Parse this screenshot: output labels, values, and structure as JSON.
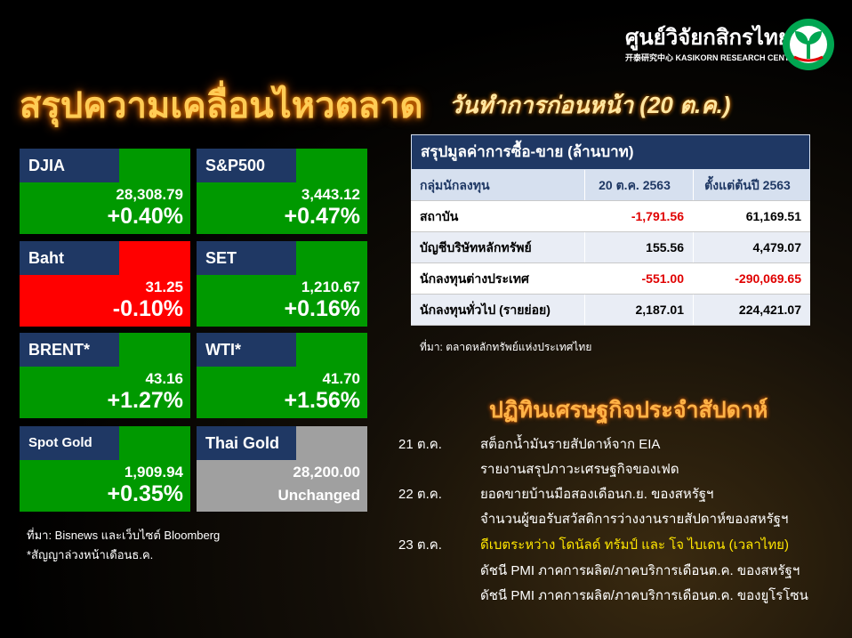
{
  "header": {
    "title": "สรุปความเคลื่อนไหวตลาด",
    "subtitle": "วันทำการก่อนหน้า (20 ต.ค.)"
  },
  "logo": {
    "name": "ศูนย์วิจัยกสิกรไทย",
    "subname": "开泰研究中心 KASIKORN RESEARCH CENTER",
    "mark_icon": "kasikorn-leaf-icon",
    "mark_color": "#00a651"
  },
  "colors": {
    "up": "#009900",
    "down": "#ff0000",
    "flat": "#a0a0a0",
    "label_bg": "#1f3864",
    "accent": "#ffcc55"
  },
  "tiles": [
    {
      "label": "DJIA",
      "value": "28,308.79",
      "change": "+0.40%",
      "status": "up"
    },
    {
      "label": "S&P500",
      "value": "3,443.12",
      "change": "+0.47%",
      "status": "up"
    },
    {
      "label": "Baht",
      "value": "31.25",
      "change": "-0.10%",
      "status": "down"
    },
    {
      "label": "SET",
      "value": "1,210.67",
      "change": "+0.16%",
      "status": "up"
    },
    {
      "label": "BRENT*",
      "value": "43.16",
      "change": "+1.27%",
      "status": "up"
    },
    {
      "label": "WTI*",
      "value": "41.70",
      "change": "+1.56%",
      "status": "up"
    },
    {
      "label": "Spot Gold",
      "value": "1,909.94",
      "change": "+0.35%",
      "status": "up"
    },
    {
      "label": "Thai Gold",
      "value": "28,200.00",
      "change": "Unchanged",
      "status": "flat"
    }
  ],
  "left_source": {
    "line1": "ที่มา: Bisnews และเว็บไซต์ Bloomberg",
    "line2": "*สัญญาล่วงหน้าเดือนธ.ค."
  },
  "trade_table": {
    "title": "สรุปมูลค่าการซื้อ-ขาย (ล้านบาท)",
    "columns": [
      "กลุ่มนักลงทุน",
      "20 ต.ค. 2563",
      "ตั้งแต่ต้นปี 2563"
    ],
    "rows": [
      {
        "group": "สถาบัน",
        "day": "-1,791.56",
        "ytd": "61,169.51"
      },
      {
        "group": "บัญชีบริษัทหลักทรัพย์",
        "day": "155.56",
        "ytd": "4,479.07"
      },
      {
        "group": "นักลงทุนต่างประเทศ",
        "day": "-551.00",
        "ytd": "-290,069.65"
      },
      {
        "group": "นักลงทุนทั่วไป (รายย่อย)",
        "day": "2,187.01",
        "ytd": "224,421.07"
      }
    ],
    "source": "ที่มา: ตลาดหลักทรัพย์แห่งประเทศไทย"
  },
  "calendar": {
    "title": "ปฏิทินเศรษฐกิจประจำสัปดาห์",
    "entries": [
      {
        "date": "21 ต.ค.",
        "items": [
          "สต็อกน้ำมันรายสัปดาห์จาก EIA",
          "รายงานสรุปภาวะเศรษฐกิจของเฟด"
        ],
        "highlight": false
      },
      {
        "date": "22 ต.ค.",
        "items": [
          "ยอดขายบ้านมือสองเดือนก.ย. ของสหรัฐฯ",
          "จำนวนผู้ขอรับสวัสดิการว่างงานรายสัปดาห์ของสหรัฐฯ"
        ],
        "highlight": false
      },
      {
        "date": "23 ต.ค.",
        "items": [
          "ดีเบตระหว่าง โดนัลด์ ทรัมป์ และ โจ ไบเดน (เวลาไทย)",
          "ดัชนี PMI ภาคการผลิต/ภาคบริการเดือนต.ค. ของสหรัฐฯ",
          "ดัชนี PMI ภาคการผลิต/ภาคบริการเดือนต.ค. ของยูโรโซน"
        ],
        "highlight": true
      }
    ]
  }
}
